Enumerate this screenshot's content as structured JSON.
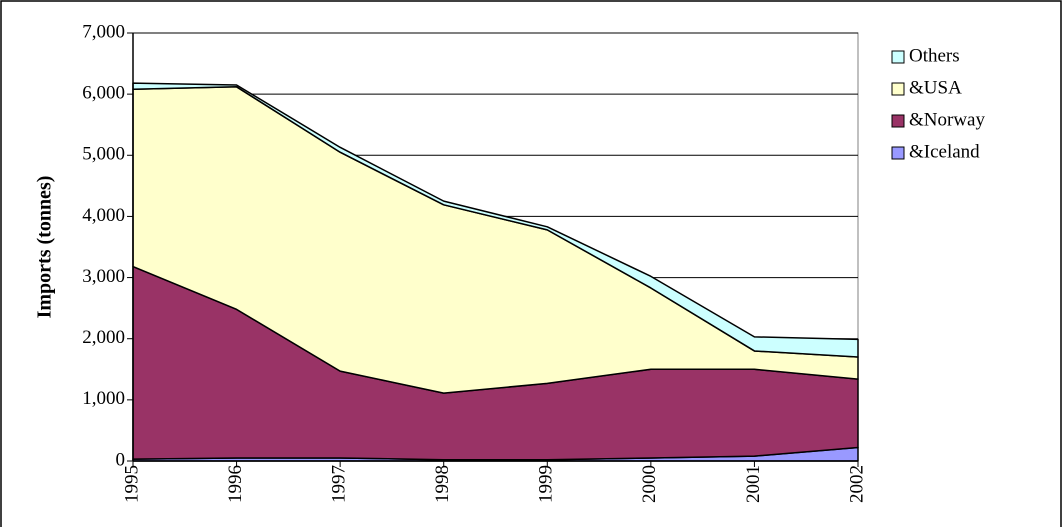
{
  "chart_data": {
    "type": "stacked-area",
    "y_label": "Imports (tonnes)",
    "categories": [
      "1995",
      "1996",
      "1997",
      "1998",
      "1999",
      "2000",
      "2001",
      "2002"
    ],
    "series": [
      {
        "name": "&Iceland",
        "color": "#9999ff",
        "values": [
          30,
          50,
          50,
          20,
          20,
          50,
          80,
          220
        ]
      },
      {
        "name": "&Norway",
        "color": "#993366",
        "values": [
          3150,
          2430,
          1420,
          1090,
          1250,
          1450,
          1420,
          1120
        ]
      },
      {
        "name": "&USA",
        "color": "#ffffcc",
        "values": [
          2900,
          3640,
          3580,
          3080,
          2510,
          1330,
          300,
          360
        ]
      },
      {
        "name": "Others",
        "color": "#ccffff",
        "values": [
          100,
          30,
          80,
          60,
          50,
          190,
          230,
          290
        ]
      }
    ],
    "ylim": [
      0,
      7000
    ],
    "yticks": [
      0,
      {
        "value": 1000,
        "label": "1,000"
      },
      {
        "value": 2000,
        "label": "2,000"
      },
      {
        "value": 3000,
        "label": "3,000"
      },
      {
        "value": 4000,
        "label": "4,000"
      },
      {
        "value": 5000,
        "label": "5,000"
      },
      {
        "value": 6000,
        "label": "6,000"
      },
      {
        "value": 7000,
        "label": "7,000"
      }
    ],
    "grid": true,
    "legend": "right"
  }
}
